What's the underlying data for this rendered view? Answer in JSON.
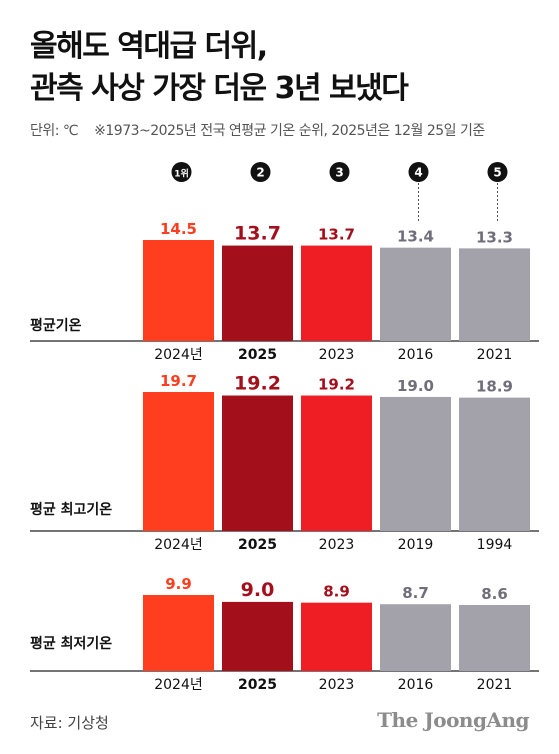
{
  "title": {
    "line1": "올해도 역대급 더위,",
    "line2": "관측 사상 가장 더운 3년 보냈다"
  },
  "subtitle": {
    "unit": "단위: ℃",
    "note": "※1973~2025년 전국 연평균 기온 순위, 2025년은 12월 25일 기준"
  },
  "colors": {
    "rank1": "#ff3d1f",
    "y2025": "#a30f1b",
    "y2023": "#ee1e24",
    "other": "#a3a2ab",
    "label_dark": "#a30f1b",
    "label_gray": "#6f6e7a"
  },
  "ranks": [
    "1위",
    "2",
    "3",
    "4",
    "5"
  ],
  "chart_data": [
    {
      "type": "bar",
      "title": "평균기온",
      "categories": [
        "2024년",
        "2025",
        "2023",
        "2016",
        "2021"
      ],
      "values": [
        14.5,
        13.7,
        13.7,
        13.4,
        13.3
      ],
      "value_labels": [
        "14.5",
        "13.7",
        "13.7",
        "13.4",
        "13.3"
      ]
    },
    {
      "type": "bar",
      "title": "평균 최고기온",
      "categories": [
        "2024년",
        "2025",
        "2023",
        "2019",
        "1994"
      ],
      "values": [
        19.7,
        19.2,
        19.2,
        19.0,
        18.9
      ],
      "value_labels": [
        "19.7",
        "19.2",
        "19.2",
        "19.0",
        "18.9"
      ]
    },
    {
      "type": "bar",
      "title": "평균 최저기온",
      "categories": [
        "2024년",
        "2025",
        "2023",
        "2016",
        "2021"
      ],
      "values": [
        9.9,
        9.0,
        8.9,
        8.7,
        8.6
      ],
      "value_labels": [
        "9.9",
        "9.0",
        "8.9",
        "8.7",
        "8.6"
      ]
    }
  ],
  "footer": {
    "source": "자료: 기상청",
    "brand": "The JoongAng"
  }
}
